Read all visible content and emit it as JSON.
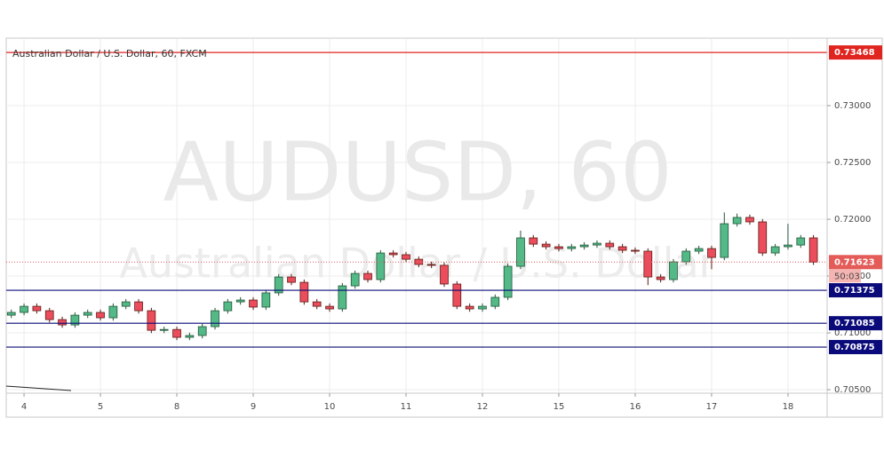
{
  "chart_data": {
    "type": "candlestick",
    "title": "Australian Dollar / U.S. Dollar, 60, FXCM",
    "watermark": [
      "AUDUSD, 60",
      "Australian Dollar / U.S. Dollar"
    ],
    "up_color": "#53b987",
    "down_color": "#eb4d5c",
    "x": [
      -4,
      0,
      4,
      8,
      12,
      16,
      20,
      24,
      28,
      32,
      36,
      40,
      44,
      48,
      52,
      56,
      60,
      64,
      68,
      72,
      76,
      80,
      84,
      88,
      92,
      96,
      100,
      104,
      108,
      112,
      116,
      120,
      124,
      128,
      132,
      136,
      140,
      144,
      148,
      152,
      156,
      160,
      164,
      168,
      172,
      176,
      180,
      184,
      188,
      192,
      196,
      200,
      204,
      208,
      212,
      216,
      220,
      224,
      228,
      232,
      236,
      240,
      244,
      248
    ],
    "open": [
      0.71156,
      0.7118,
      0.71234,
      0.71195,
      0.71117,
      0.7107,
      0.71156,
      0.7118,
      0.71133,
      0.71234,
      0.71273,
      0.71195,
      0.71023,
      0.7103,
      0.70961,
      0.70977,
      0.71055,
      0.71195,
      0.71273,
      0.71289,
      0.71227,
      0.71352,
      0.71492,
      0.71445,
      0.71273,
      0.71234,
      0.71211,
      0.71414,
      0.71523,
      0.71469,
      0.71703,
      0.71688,
      0.71648,
      0.71602,
      0.71595,
      0.7143,
      0.71234,
      0.71211,
      0.71234,
      0.71313,
      0.71586,
      0.71836,
      0.71781,
      0.71758,
      0.71742,
      0.71758,
      0.71773,
      0.71789,
      0.71758,
      0.71727,
      0.71719,
      0.71492,
      0.71469,
      0.71625,
      0.71719,
      0.71742,
      0.71664,
      0.71961,
      0.72016,
      0.71977,
      0.71703,
      0.71758,
      0.71773,
      0.71836
    ],
    "high": [
      0.71205,
      0.71259,
      0.71259,
      0.7122,
      0.71142,
      0.71181,
      0.71205,
      0.71205,
      0.71259,
      0.71298,
      0.71298,
      0.7122,
      0.71055,
      0.71055,
      0.71002,
      0.7108,
      0.7122,
      0.71298,
      0.71314,
      0.71314,
      0.71377,
      0.71517,
      0.71517,
      0.7147,
      0.71298,
      0.71259,
      0.71439,
      0.71548,
      0.71548,
      0.71728,
      0.71728,
      0.71713,
      0.71673,
      0.71627,
      0.7162,
      0.71455,
      0.71259,
      0.71259,
      0.71338,
      0.71611,
      0.719,
      0.71861,
      0.71806,
      0.71783,
      0.71783,
      0.71798,
      0.71814,
      0.71814,
      0.71783,
      0.71752,
      0.71744,
      0.71517,
      0.7165,
      0.71744,
      0.71767,
      0.71767,
      0.7206,
      0.7205,
      0.72041,
      0.72002,
      0.71783,
      0.7196,
      0.71861,
      0.71861
    ],
    "low": [
      0.71131,
      0.71155,
      0.7117,
      0.71092,
      0.71045,
      0.71045,
      0.71131,
      0.71108,
      0.71108,
      0.71209,
      0.7117,
      0.70998,
      0.70998,
      0.70936,
      0.70936,
      0.70952,
      0.7103,
      0.7117,
      0.71248,
      0.71202,
      0.71202,
      0.71327,
      0.7142,
      0.71248,
      0.71209,
      0.71186,
      0.71186,
      0.71389,
      0.71444,
      0.71444,
      0.71663,
      0.71623,
      0.71577,
      0.7157,
      0.71405,
      0.71209,
      0.71186,
      0.71186,
      0.71209,
      0.71288,
      0.71561,
      0.71756,
      0.71733,
      0.71717,
      0.71717,
      0.71733,
      0.71748,
      0.71733,
      0.71702,
      0.71694,
      0.7142,
      0.71444,
      0.71444,
      0.716,
      0.71694,
      0.7156,
      0.71639,
      0.71936,
      0.71952,
      0.71678,
      0.71678,
      0.71733,
      0.71748,
      0.71598
    ],
    "close": [
      0.7118,
      0.71234,
      0.71195,
      0.71117,
      0.7107,
      0.71156,
      0.7118,
      0.71133,
      0.71234,
      0.71273,
      0.71195,
      0.71023,
      0.7103,
      0.70961,
      0.70977,
      0.71055,
      0.71195,
      0.71273,
      0.71289,
      0.71227,
      0.71352,
      0.71492,
      0.71445,
      0.71273,
      0.71234,
      0.71211,
      0.71414,
      0.71523,
      0.71469,
      0.71703,
      0.71688,
      0.71648,
      0.71602,
      0.71595,
      0.7143,
      0.71234,
      0.71211,
      0.71234,
      0.71313,
      0.71586,
      0.71836,
      0.71781,
      0.71758,
      0.71742,
      0.71758,
      0.71773,
      0.71789,
      0.71758,
      0.71727,
      0.71719,
      0.71492,
      0.71469,
      0.71625,
      0.71719,
      0.71742,
      0.71664,
      0.71961,
      0.72016,
      0.71977,
      0.71703,
      0.71758,
      0.71773,
      0.71836,
      0.71623
    ],
    "xlim": [
      -5.6,
      252.3
    ],
    "xticks": [
      {
        "value": 0,
        "label": "4"
      },
      {
        "value": 24,
        "label": "5"
      },
      {
        "value": 48,
        "label": "8"
      },
      {
        "value": 72,
        "label": "9"
      },
      {
        "value": 96,
        "label": "10"
      },
      {
        "value": 120,
        "label": "11"
      },
      {
        "value": 144,
        "label": "12"
      },
      {
        "value": 168,
        "label": "15"
      },
      {
        "value": 192,
        "label": "16"
      },
      {
        "value": 216,
        "label": "17"
      },
      {
        "value": 240,
        "label": "18"
      }
    ],
    "ylim": [
      0.70477,
      0.73586
    ],
    "yticks": [
      {
        "value": 0.705,
        "label": "0.70500"
      },
      {
        "value": 0.71,
        "label": "0.71000"
      },
      {
        "value": 0.715,
        "label": "0.71500"
      },
      {
        "value": 0.72,
        "label": "0.72000"
      },
      {
        "value": 0.725,
        "label": "0.72500"
      },
      {
        "value": 0.73,
        "label": "0.73000"
      }
    ],
    "grid": true,
    "levels": [
      {
        "value": 0.73468,
        "color": "#e0241f"
      },
      {
        "value": 0.71375,
        "color": "#0a0a7a"
      },
      {
        "value": 0.71085,
        "color": "#0a0a7a"
      },
      {
        "value": 0.70875,
        "color": "#0a0a7a"
      }
    ],
    "current_price": 0.71623,
    "current_color": "#e35c58",
    "countdown": "50:03"
  }
}
